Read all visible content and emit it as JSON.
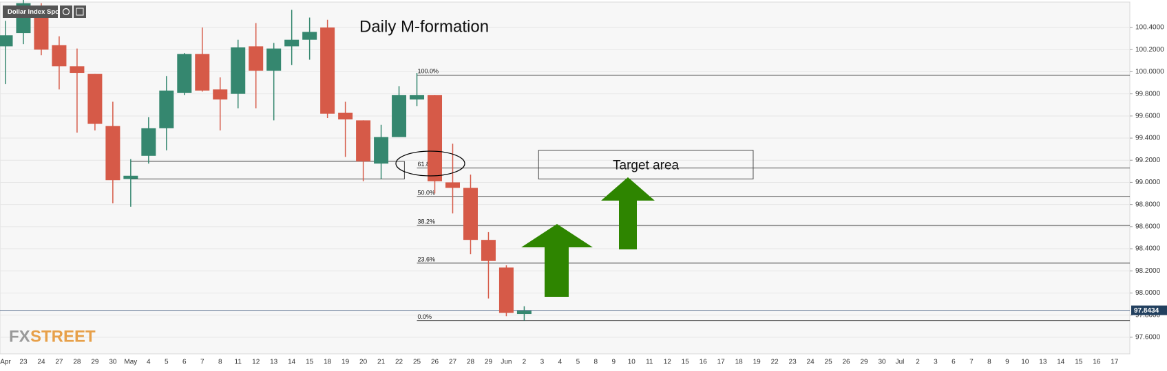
{
  "chart_data": {
    "type": "candlestick",
    "instrument": "Dollar Index Spot",
    "title": "Daily M-formation",
    "watermark": {
      "left": "FX",
      "right": "STREET"
    },
    "categories": [
      "Apr",
      "23",
      "24",
      "27",
      "28",
      "29",
      "30",
      "May",
      "4",
      "5",
      "6",
      "7",
      "8",
      "11",
      "12",
      "13",
      "14",
      "15",
      "18",
      "19",
      "20",
      "21",
      "22",
      "25",
      "26",
      "27",
      "28",
      "29",
      "Jun",
      "2",
      "3",
      "4",
      "5",
      "8",
      "9",
      "10",
      "11",
      "12",
      "15",
      "16",
      "17",
      "18",
      "19",
      "22",
      "23",
      "24",
      "25",
      "26",
      "29",
      "30",
      "Jul",
      "2",
      "3",
      "6",
      "7",
      "8",
      "9",
      "10",
      "13",
      "14",
      "15",
      "16",
      "17"
    ],
    "open": [
      100.23,
      100.35,
      100.5,
      100.24,
      100.05,
      99.98,
      99.51,
      99.03,
      99.24,
      99.49,
      99.81,
      100.16,
      99.84,
      99.8,
      100.23,
      100.01,
      100.23,
      100.29,
      100.4,
      99.63,
      99.56,
      99.17,
      99.41,
      99.75,
      99.79,
      99.0,
      98.95,
      98.48,
      98.23,
      97.81,
      null,
      null,
      null,
      null,
      null,
      null,
      null,
      null,
      null,
      null,
      null,
      null,
      null,
      null,
      null,
      null,
      null,
      null,
      null,
      null,
      null,
      null,
      null,
      null,
      null,
      null,
      null,
      null,
      null,
      null,
      null,
      null,
      null
    ],
    "high": [
      100.46,
      100.68,
      100.62,
      100.32,
      100.21,
      99.98,
      99.73,
      99.21,
      99.59,
      99.96,
      100.17,
      100.4,
      99.95,
      100.29,
      100.44,
      100.26,
      100.56,
      100.49,
      100.47,
      99.73,
      99.56,
      99.52,
      99.87,
      99.99,
      99.79,
      99.35,
      99.07,
      98.55,
      98.25,
      97.88,
      null,
      null,
      null,
      null,
      null,
      null,
      null,
      null,
      null,
      null,
      null,
      null,
      null,
      null,
      null,
      null,
      null,
      null,
      null,
      null,
      null,
      null,
      null,
      null,
      null,
      null,
      null,
      null,
      null,
      null,
      null,
      null,
      null
    ],
    "low": [
      99.89,
      100.25,
      100.15,
      99.84,
      99.45,
      99.47,
      98.81,
      98.78,
      99.17,
      99.29,
      99.79,
      99.82,
      99.47,
      99.67,
      99.67,
      99.56,
      100.06,
      100.11,
      99.58,
      99.23,
      99.01,
      99.03,
      99.41,
      99.69,
      98.9,
      98.72,
      98.35,
      97.95,
      97.79,
      97.75,
      null,
      null,
      null,
      null,
      null,
      null,
      null,
      null,
      null,
      null,
      null,
      null,
      null,
      null,
      null,
      null,
      null,
      null,
      null,
      null,
      null,
      null,
      null,
      null,
      null,
      null,
      null,
      null,
      null,
      null,
      null,
      null,
      null
    ],
    "close": [
      100.33,
      100.62,
      100.2,
      100.05,
      99.99,
      99.53,
      99.02,
      99.06,
      99.49,
      99.83,
      100.16,
      99.83,
      99.75,
      100.22,
      100.01,
      100.21,
      100.29,
      100.36,
      99.62,
      99.57,
      99.19,
      99.41,
      99.79,
      99.79,
      99.01,
      98.95,
      98.48,
      98.29,
      97.82,
      97.84,
      null,
      null,
      null,
      null,
      null,
      null,
      null,
      null,
      null,
      null,
      null,
      null,
      null,
      null,
      null,
      null,
      null,
      null,
      null,
      null,
      null,
      null,
      null,
      null,
      null,
      null,
      null,
      null,
      null,
      null,
      null,
      null,
      null
    ],
    "up_color": "#35876f",
    "down_color": "#d65a48",
    "ylim": [
      97.45,
      100.63
    ],
    "yticks": [
      {
        "value": 97.6,
        "label": "97.6000"
      },
      {
        "value": 97.8,
        "label": "97.8000"
      },
      {
        "value": 98.0,
        "label": "98.0000"
      },
      {
        "value": 98.2,
        "label": "98.2000"
      },
      {
        "value": 98.4,
        "label": "98.4000"
      },
      {
        "value": 98.6,
        "label": "98.6000"
      },
      {
        "value": 98.8,
        "label": "98.8000"
      },
      {
        "value": 99.0,
        "label": "99.0000"
      },
      {
        "value": 99.2,
        "label": "99.2000"
      },
      {
        "value": 99.4,
        "label": "99.4000"
      },
      {
        "value": 99.6,
        "label": "99.6000"
      },
      {
        "value": 99.8,
        "label": "99.8000"
      },
      {
        "value": 100.0,
        "label": "100.0000"
      },
      {
        "value": 100.2,
        "label": "100.2000"
      },
      {
        "value": 100.4,
        "label": "100.4000"
      }
    ],
    "grid": true,
    "current_price": 97.8434,
    "fibonacci": [
      {
        "label": "100.0%",
        "price": 99.97
      },
      {
        "label": "61.8%",
        "price": 99.13
      },
      {
        "label": "50.0%",
        "price": 98.87
      },
      {
        "label": "38.2%",
        "price": 98.61
      },
      {
        "label": "23.6%",
        "price": 98.27
      },
      {
        "label": "0.0%",
        "price": 97.75
      }
    ],
    "boxes": [
      {
        "top": 99.19,
        "bottom": 99.03
      },
      {
        "label": "Target area",
        "top": 99.29,
        "bottom": 99.03
      }
    ]
  }
}
